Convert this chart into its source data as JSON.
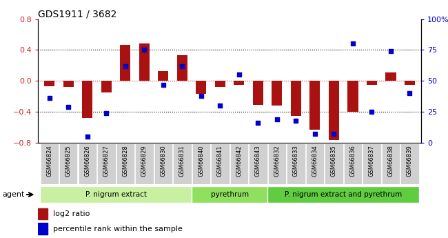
{
  "title": "GDS1911 / 3682",
  "samples": [
    "GSM66824",
    "GSM66825",
    "GSM66826",
    "GSM66827",
    "GSM66828",
    "GSM66829",
    "GSM66830",
    "GSM66831",
    "GSM66840",
    "GSM66841",
    "GSM66842",
    "GSM66843",
    "GSM66832",
    "GSM66833",
    "GSM66834",
    "GSM66835",
    "GSM66836",
    "GSM66837",
    "GSM66838",
    "GSM66839"
  ],
  "log2_ratio": [
    -0.07,
    -0.08,
    -0.48,
    -0.15,
    0.47,
    0.48,
    0.13,
    0.33,
    -0.17,
    -0.08,
    -0.05,
    -0.31,
    -0.32,
    -0.45,
    -0.63,
    -0.76,
    -0.4,
    -0.05,
    0.11,
    -0.05
  ],
  "percentile": [
    36,
    29,
    5,
    24,
    62,
    75,
    47,
    62,
    38,
    30,
    55,
    16,
    19,
    18,
    7,
    7,
    80,
    25,
    74,
    40
  ],
  "groups": [
    {
      "label": "P. nigrum extract",
      "start": 0,
      "end": 8,
      "color": "#c8f0a0"
    },
    {
      "label": "pyrethrum",
      "start": 8,
      "end": 12,
      "color": "#90e060"
    },
    {
      "label": "P. nigrum extract and pyrethrum",
      "start": 12,
      "end": 20,
      "color": "#60cc40"
    }
  ],
  "bar_color": "#aa1111",
  "dot_color": "#0000cc",
  "ylim_left": [
    -0.8,
    0.8
  ],
  "ylim_right": [
    0,
    100
  ],
  "yticks_left": [
    -0.8,
    -0.4,
    0.0,
    0.4,
    0.8
  ],
  "yticks_right": [
    0,
    25,
    50,
    75,
    100
  ],
  "hlines_dotted": [
    -0.4,
    0.4
  ],
  "hline_red": 0.0,
  "legend_bar_label": "log2 ratio",
  "legend_dot_label": "percentile rank within the sample",
  "agent_label": "agent",
  "xtick_bg": "#cccccc",
  "bar_width": 0.55
}
